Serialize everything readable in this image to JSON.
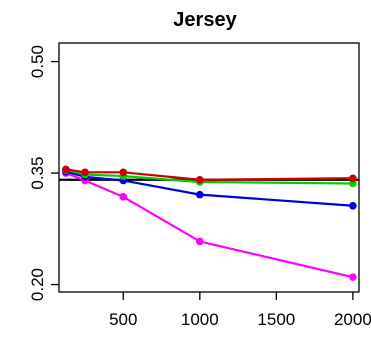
{
  "chart_data": {
    "type": "line",
    "title": "Jersey",
    "xlabel": "",
    "ylabel": "",
    "x_ticks": [
      500,
      1000,
      1500,
      2000
    ],
    "y_ticks": [
      0.2,
      0.35,
      0.5
    ],
    "y_tick_labels": [
      "0.20",
      "0.35",
      "0.50"
    ],
    "xlim": [
      80,
      2040
    ],
    "ylim": [
      0.19,
      0.525
    ],
    "reference_line": {
      "y": 0.341,
      "color": "#000000"
    },
    "x": [
      125,
      250,
      500,
      1000,
      2000
    ],
    "series": [
      {
        "color": "#ff00ff",
        "values": [
          0.35,
          0.34,
          0.318,
          0.258,
          0.21
        ]
      },
      {
        "color": "#0000dd",
        "values": [
          0.352,
          0.345,
          0.34,
          0.321,
          0.306
        ]
      },
      {
        "color": "#00cc00",
        "values": [
          0.354,
          0.348,
          0.346,
          0.338,
          0.336
        ]
      },
      {
        "color": "#cc0000",
        "values": [
          0.355,
          0.351,
          0.351,
          0.341,
          0.343
        ]
      }
    ]
  }
}
